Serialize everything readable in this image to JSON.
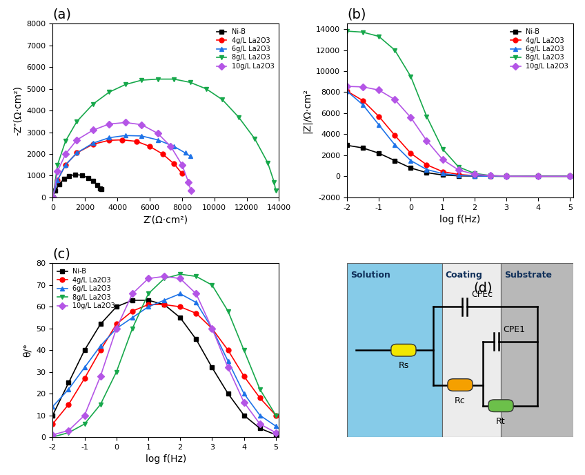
{
  "chart_data": [
    {
      "type": "line",
      "title": "(a)",
      "x_label": "Z′(Ω·cm²)",
      "y_label": "-Z″(Ω·cm²)",
      "xlim": [
        0,
        14000
      ],
      "xticks": [
        0,
        2000,
        4000,
        6000,
        8000,
        10000,
        12000,
        14000
      ],
      "ylim": [
        0,
        8000
      ],
      "yticks": [
        0,
        1000,
        2000,
        3000,
        4000,
        5000,
        6000,
        7000,
        8000
      ],
      "legend": "upper right",
      "series": [
        {
          "name": "Ni-B",
          "color": "#000000",
          "marker": "square",
          "x": [
            20,
            150,
            400,
            700,
            1000,
            1400,
            1800,
            2200,
            2500,
            2750,
            2950,
            3000
          ],
          "values": [
            0,
            300,
            600,
            850,
            990,
            1050,
            1020,
            900,
            750,
            580,
            420,
            380
          ]
        },
        {
          "name": "4g/L La2O3",
          "color": "#ff0000",
          "marker": "circle",
          "x": [
            20,
            300,
            800,
            1500,
            2500,
            3500,
            4300,
            5200,
            6000,
            6800,
            7500,
            8000
          ],
          "values": [
            0,
            800,
            1500,
            2050,
            2450,
            2630,
            2650,
            2580,
            2350,
            2000,
            1550,
            1100
          ]
        },
        {
          "name": "6g/L La2O3",
          "color": "#1e73e8",
          "marker": "triangle_up",
          "x": [
            20,
            300,
            800,
            1500,
            2500,
            3500,
            4500,
            5500,
            6500,
            7500,
            8200,
            8500
          ],
          "values": [
            0,
            800,
            1500,
            2050,
            2500,
            2750,
            2850,
            2830,
            2650,
            2350,
            2050,
            1900
          ]
        },
        {
          "name": "8g/L La2O3",
          "color": "#17a84b",
          "marker": "triangle_down",
          "x": [
            20,
            300,
            800,
            1500,
            2500,
            3500,
            4500,
            5500,
            6500,
            7500,
            8500,
            9500,
            10500,
            11500,
            12500,
            13300,
            13700,
            13800
          ],
          "values": [
            0,
            1500,
            2600,
            3500,
            4300,
            4850,
            5200,
            5400,
            5450,
            5450,
            5300,
            5000,
            4500,
            3700,
            2700,
            1600,
            700,
            300
          ]
        },
        {
          "name": "10g/L La2O3",
          "color": "#b455e6",
          "marker": "diamond",
          "x": [
            20,
            300,
            800,
            1500,
            2500,
            3500,
            4500,
            5500,
            6500,
            7300,
            8000,
            8400,
            8550
          ],
          "values": [
            0,
            1200,
            2000,
            2650,
            3100,
            3380,
            3450,
            3350,
            2950,
            2350,
            1500,
            700,
            300
          ]
        }
      ]
    },
    {
      "type": "line",
      "title": "(b)",
      "x_label": "log f(Hz)",
      "y_label": "|Z|/Ω·cm²",
      "xlim": [
        -2,
        5.1
      ],
      "xticks": [
        -2,
        -1,
        0,
        1,
        2,
        3,
        4,
        5
      ],
      "ylim": [
        -2000,
        14500
      ],
      "yticks": [
        -2000,
        0,
        2000,
        4000,
        6000,
        8000,
        10000,
        12000,
        14000
      ],
      "legend": "upper right",
      "x": [
        -2,
        -1.5,
        -1,
        -0.5,
        0,
        0.5,
        1,
        1.5,
        2,
        2.5,
        3,
        4,
        5
      ],
      "series": [
        {
          "name": "Ni-B",
          "color": "#000000",
          "marker": "square",
          "values": [
            2950,
            2700,
            2200,
            1500,
            800,
            350,
            130,
            50,
            20,
            10,
            5,
            5,
            5
          ]
        },
        {
          "name": "4g/L La2O3",
          "color": "#ff0000",
          "marker": "circle",
          "values": [
            8100,
            7200,
            5700,
            3900,
            2200,
            1100,
            450,
            180,
            60,
            20,
            10,
            5,
            5
          ]
        },
        {
          "name": "6g/L La2O3",
          "color": "#1e73e8",
          "marker": "triangle_up",
          "values": [
            8100,
            6800,
            4900,
            3000,
            1500,
            650,
            260,
            90,
            30,
            12,
            6,
            5,
            5
          ]
        },
        {
          "name": "8g/L La2O3",
          "color": "#17a84b",
          "marker": "triangle_down",
          "values": [
            13800,
            13700,
            13300,
            12000,
            9500,
            5700,
            2600,
            900,
            280,
            80,
            25,
            8,
            5
          ]
        },
        {
          "name": "10g/L La2O3",
          "color": "#b455e6",
          "marker": "diamond",
          "values": [
            8550,
            8500,
            8200,
            7300,
            5600,
            3400,
            1600,
            600,
            200,
            60,
            20,
            6,
            5
          ]
        }
      ]
    },
    {
      "type": "line",
      "title": "(c)",
      "x_label": "log f(Hz)",
      "y_label": "θ/°",
      "xlim": [
        -2,
        5.1
      ],
      "xticks": [
        -2,
        -1,
        0,
        1,
        2,
        3,
        4,
        5
      ],
      "ylim": [
        0,
        80
      ],
      "yticks": [
        0,
        10,
        20,
        30,
        40,
        50,
        60,
        70,
        80
      ],
      "legend": "upper left",
      "x": [
        -2,
        -1.5,
        -1,
        -0.5,
        0,
        0.5,
        1,
        1.5,
        2,
        2.5,
        3,
        3.5,
        4,
        4.5,
        5
      ],
      "series": [
        {
          "name": "Ni-B",
          "color": "#000000",
          "marker": "square",
          "values": [
            10,
            25,
            40,
            52,
            60,
            63,
            63,
            61,
            55,
            45,
            32,
            20,
            10,
            4,
            1
          ]
        },
        {
          "name": "4g/L La2O3",
          "color": "#ff0000",
          "marker": "circle",
          "values": [
            6,
            15,
            27,
            40,
            52,
            58,
            61,
            61,
            60,
            57,
            50,
            40,
            28,
            18,
            10
          ]
        },
        {
          "name": "6g/L La2O3",
          "color": "#1e73e8",
          "marker": "triangle_up",
          "values": [
            14,
            22,
            32,
            42,
            50,
            55,
            60,
            63,
            66,
            62,
            50,
            35,
            20,
            10,
            5
          ]
        },
        {
          "name": "8g/L La2O3",
          "color": "#17a84b",
          "marker": "triangle_down",
          "values": [
            0,
            2,
            6,
            15,
            30,
            50,
            66,
            73,
            75,
            74,
            70,
            58,
            40,
            22,
            10
          ]
        },
        {
          "name": "10g/L La2O3",
          "color": "#b455e6",
          "marker": "diamond",
          "values": [
            1,
            3,
            10,
            28,
            50,
            66,
            73,
            74,
            73,
            66,
            50,
            32,
            16,
            6,
            2
          ]
        }
      ]
    }
  ],
  "diagram": {
    "title": "(d)",
    "regions": [
      {
        "label": "Solution",
        "color": "#86cbe8"
      },
      {
        "label": "Coating",
        "color": "#ececec"
      },
      {
        "label": "Substrate",
        "color": "#b8b8b8"
      }
    ],
    "components": [
      {
        "label": "Rs",
        "type": "resistor",
        "color": "#f2e600"
      },
      {
        "label": "CPEc",
        "type": "cpe"
      },
      {
        "label": "CPE1",
        "type": "cpe"
      },
      {
        "label": "Rc",
        "type": "resistor",
        "color": "#f5a000"
      },
      {
        "label": "Rt",
        "type": "resistor",
        "color": "#6cc04a"
      }
    ]
  }
}
